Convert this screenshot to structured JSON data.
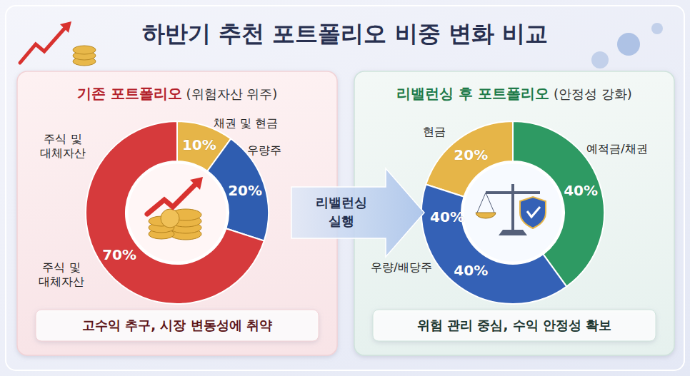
{
  "header": {
    "title": "하반기 추천 포트폴리오 비중 변화 비교"
  },
  "arrow": {
    "label": [
      "리밸런싱",
      "실행"
    ]
  },
  "chart_data": [
    {
      "type": "pie",
      "title": "기존 포트폴리오",
      "subtitle": "(위험자산 위주)",
      "categories": [
        "채권 및 현금",
        "우량주",
        "주식 및 대체자산"
      ],
      "values": [
        10,
        20,
        70
      ],
      "value_labels": [
        "10%",
        "20%",
        "70%"
      ],
      "colors": [
        "#e6b548",
        "#2f5db0",
        "#d63a3c"
      ],
      "data_labels": true,
      "annotations": [
        "고수익 추구, 시장 변동성에 취약"
      ]
    },
    {
      "type": "pie",
      "title": "리밸런싱 후 포트폴리오",
      "subtitle": "(안정성 강화)",
      "categories": [
        "현금",
        "예적금/채권",
        "우량/배당주"
      ],
      "values": [
        20,
        40,
        40
      ],
      "value_labels": [
        "20%",
        "40%",
        "40%"
      ],
      "colors": [
        "#e6b548",
        "#2e9a63",
        "#3461b6"
      ],
      "data_labels": true,
      "annotations": [
        "위험 관리 중심, 수익 안정성 확보"
      ]
    }
  ]
}
